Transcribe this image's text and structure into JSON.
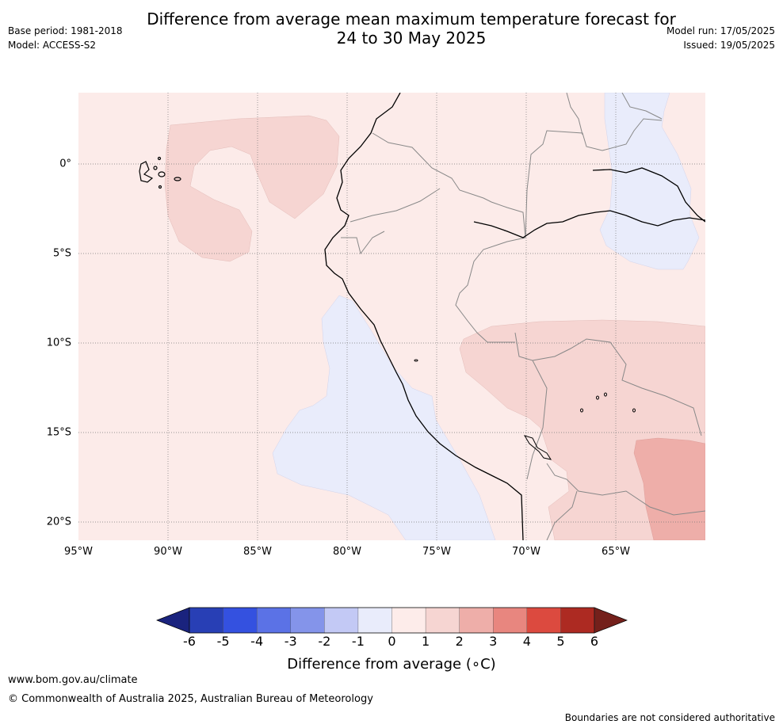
{
  "header": {
    "title_line1": "Difference from average mean maximum temperature forecast for",
    "title_line2": "24 to 30 May 2025",
    "base_period": "Base period: 1981-2018",
    "model": "Model: ACCESS-S2",
    "model_run": "Model run: 17/05/2025",
    "issued": "Issued: 19/05/2025"
  },
  "map": {
    "lat_labels": [
      "0°",
      "5°S",
      "10°S",
      "15°S",
      "20°S"
    ],
    "lon_labels": [
      "95°W",
      "90°W",
      "85°W",
      "80°W",
      "75°W",
      "70°W",
      "65°W"
    ],
    "region": "South America west coast: Ecuador, Peru, Colombia, Brazil, Bolivia, Chile",
    "anomaly_regions": [
      {
        "region": "background",
        "category": "0 to 1"
      },
      {
        "region": "west of Galapagos",
        "category": "1 to 2"
      },
      {
        "region": "Peru coastal ocean",
        "category": "-1 to 0"
      },
      {
        "region": "western Amazon",
        "category": "-1 to 0"
      },
      {
        "region": "Bolivia / southern Peru",
        "category": "1 to 2"
      },
      {
        "region": "eastern Bolivia",
        "category": "2 to 3"
      }
    ]
  },
  "colorbar": {
    "ticks": [
      "-6",
      "-5",
      "-4",
      "-3",
      "-2",
      "-1",
      "0",
      "1",
      "2",
      "3",
      "4",
      "5",
      "6"
    ],
    "colors": [
      "#1a237e",
      "#283fb5",
      "#3451e0",
      "#5b72e6",
      "#8494ea",
      "#c3c9f5",
      "#e9ecfb",
      "#fdecea",
      "#f6d5d2",
      "#eeaea9",
      "#e8867f",
      "#dc4a3f",
      "#ad2a22",
      "#74201b"
    ],
    "label": "Difference from average (∘C)"
  },
  "footer": {
    "url": "www.bom.gov.au/climate",
    "copyright": "© Commonwealth of Australia 2025, Australian Bureau of Meteorology",
    "note": "Boundaries are not considered authoritative"
  }
}
